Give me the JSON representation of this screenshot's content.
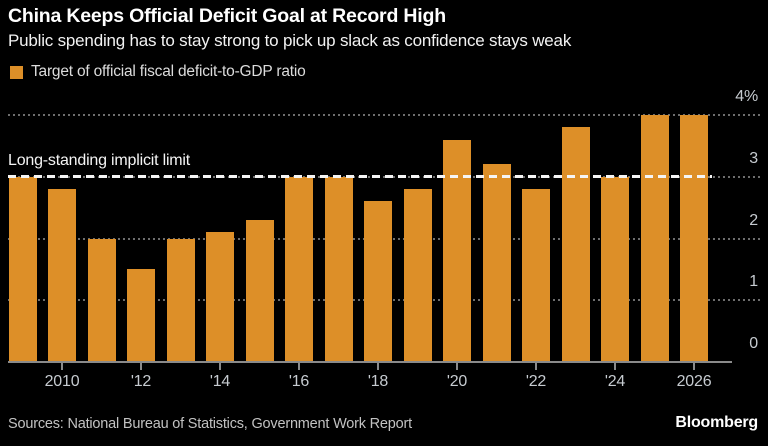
{
  "header": {
    "title": "China Keeps Official Deficit Goal at Record High",
    "subtitle": "Public spending has to stay strong to pick up slack as confidence stays weak"
  },
  "legend": {
    "label": "Target of official fiscal deficit-to-GDP ratio",
    "swatch_color": "#DD8F28"
  },
  "annotation": {
    "label": "Long-standing implicit limit"
  },
  "footer": {
    "sources": "Sources: National Bureau of Statistics, Government Work Report",
    "brand": "Bloomberg"
  },
  "colors": {
    "background": "#000000",
    "bar": "#DD8F28",
    "reference_line": "#f5f5f5",
    "gridline": "#6e6e6e",
    "axis_text": "#c6cbd0"
  },
  "chart_data": {
    "type": "bar",
    "title": "China Keeps Official Deficit Goal at Record High",
    "subtitle": "Public spending has to stay strong to pick up slack as confidence stays weak",
    "series_name": "Target of official fiscal deficit-to-GDP ratio",
    "categories": [
      "2009",
      "2010",
      "2011",
      "2012",
      "2013",
      "2014",
      "2015",
      "2016",
      "2017",
      "2018",
      "2019",
      "2020",
      "2021",
      "2022",
      "2023",
      "2024",
      "2025",
      "2026"
    ],
    "values": [
      3.0,
      2.8,
      2.0,
      1.5,
      2.0,
      2.1,
      2.3,
      3.0,
      3.0,
      2.6,
      2.8,
      3.6,
      3.2,
      2.8,
      3.8,
      3.0,
      4.0,
      4.0
    ],
    "unit": "% of GDP",
    "ylim": [
      0,
      4
    ],
    "yticks": [
      {
        "value": 4,
        "label": "4%"
      },
      {
        "value": 3,
        "label": "3"
      },
      {
        "value": 2,
        "label": "2"
      },
      {
        "value": 1,
        "label": "1"
      },
      {
        "value": 0,
        "label": "0"
      }
    ],
    "xticks": [
      {
        "year": 2010,
        "label": "2010"
      },
      {
        "year": 2012,
        "label": "'12"
      },
      {
        "year": 2014,
        "label": "'14"
      },
      {
        "year": 2016,
        "label": "'16"
      },
      {
        "year": 2018,
        "label": "'18"
      },
      {
        "year": 2020,
        "label": "'20"
      },
      {
        "year": 2022,
        "label": "'22"
      },
      {
        "year": 2024,
        "label": "'24"
      },
      {
        "year": 2026,
        "label": "2026"
      }
    ],
    "reference_line": {
      "value": 3,
      "label": "Long-standing implicit limit",
      "style": "dashed-white"
    },
    "bar_color": "#DD8F28",
    "grid": true,
    "y_axis_position": "right",
    "legend_position": "top-left"
  }
}
